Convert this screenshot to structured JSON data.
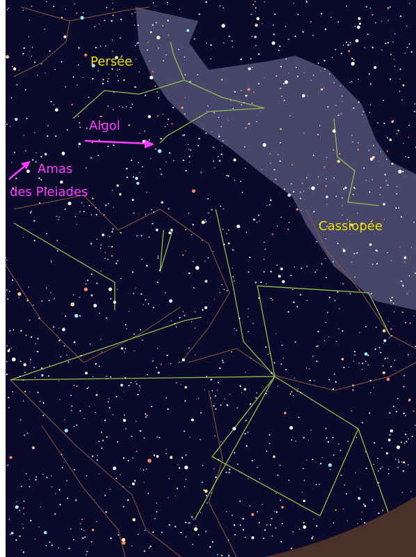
{
  "labels": {
    "perseus": "Persée",
    "algol": "Algol",
    "pleiades": [
      "Amas",
      "des Pleiades"
    ],
    "cassiopeia": "Cassiopée"
  }
}
